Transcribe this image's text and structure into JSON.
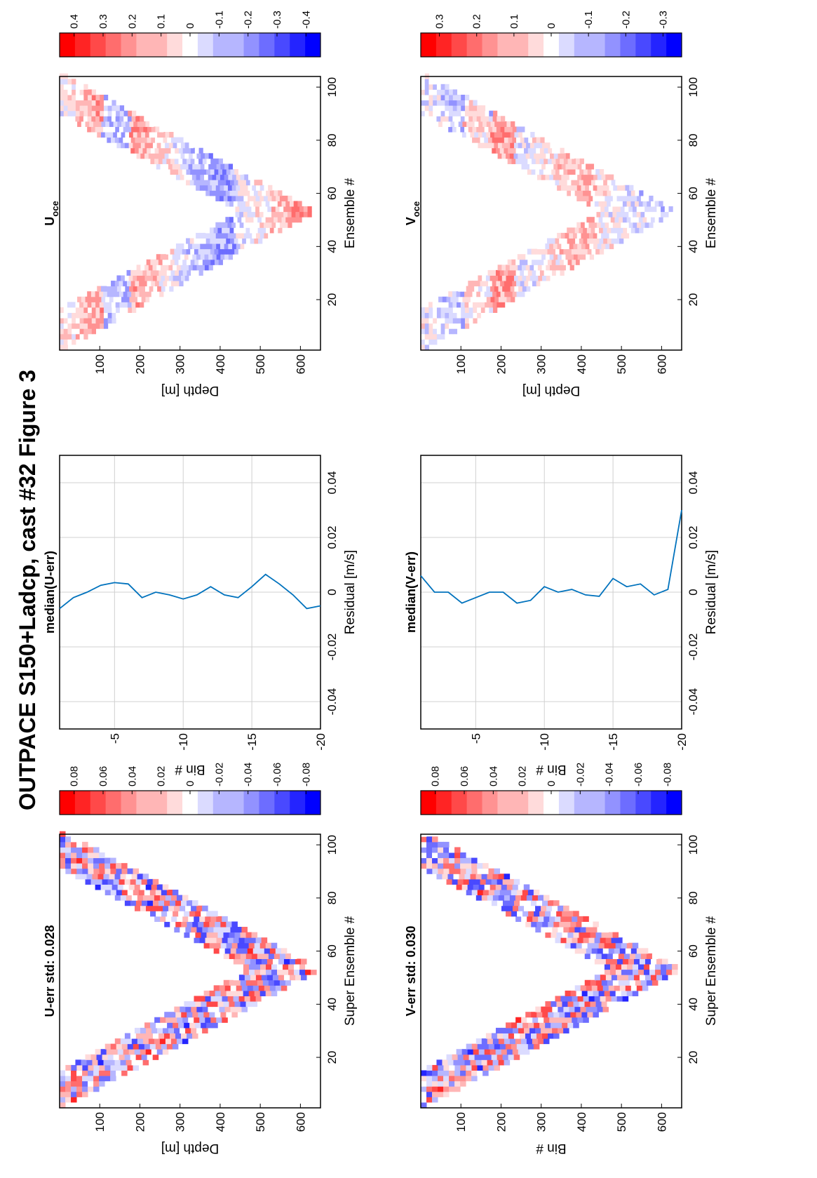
{
  "figure": {
    "title": "OUTPACE S150+Ladcp, cast #32  Figure 3"
  },
  "colors": {
    "red": "#ff0000",
    "blue": "#0000ff",
    "line": "#0072bd",
    "grid": "#d0d0d0"
  },
  "chart_data": [
    {
      "id": "u_err",
      "type": "heatmap",
      "title": "U-err std: 0.028",
      "xlabel": "Super Ensemble #",
      "ylabel": "Depth [m]",
      "xticks": [
        "20",
        "40",
        "60",
        "80",
        "100"
      ],
      "yticks": [
        "100",
        "200",
        "300",
        "400",
        "500",
        "600"
      ],
      "xlim": [
        1,
        104
      ],
      "ylim": [
        0,
        650
      ],
      "colorbar": {
        "range": [
          -0.09,
          0.09
        ],
        "ticks": [
          "0.08",
          "0.06",
          "0.04",
          "0.02",
          "0",
          "-0.02",
          "-0.04",
          "-0.06",
          "-0.08"
        ]
      }
    },
    {
      "id": "median_u",
      "type": "line",
      "title": "median(U-err)",
      "xlabel": "Residual [m/s]",
      "ylabel": "Bin #",
      "xticks": [
        "-0.04",
        "-0.02",
        "0",
        "0.02",
        "0.04"
      ],
      "yticks": [
        "-5",
        "-10",
        "-15",
        "-20"
      ],
      "xlim": [
        -0.05,
        0.05
      ],
      "ylim": [
        -20,
        -1
      ],
      "grid": true,
      "series": [
        {
          "bins": [
            -1,
            -2,
            -3,
            -4,
            -5,
            -6,
            -7,
            -8,
            -9,
            -10,
            -11,
            -12,
            -13,
            -14,
            -15,
            -16,
            -17,
            -18,
            -19,
            -20
          ],
          "values": [
            -0.006,
            -0.002,
            0.0,
            0.0025,
            0.0035,
            0.003,
            -0.002,
            0.0,
            -0.001,
            -0.0025,
            -0.001,
            0.002,
            -0.001,
            -0.002,
            0.002,
            0.0065,
            0.003,
            -0.001,
            -0.006,
            -0.005
          ]
        }
      ]
    },
    {
      "id": "u_oce",
      "type": "heatmap",
      "title": "U",
      "title_sub": "oce",
      "xlabel": "Ensemble #",
      "ylabel": "Depth [m]",
      "xticks": [
        "20",
        "40",
        "60",
        "80",
        "100"
      ],
      "yticks": [
        "100",
        "200",
        "300",
        "400",
        "500",
        "600"
      ],
      "xlim": [
        1,
        104
      ],
      "ylim": [
        0,
        650
      ],
      "colorbar": {
        "range": [
          -0.45,
          0.45
        ],
        "ticks": [
          "0.4",
          "0.3",
          "0.2",
          "0.1",
          "0",
          "-0.1",
          "-0.2",
          "-0.3",
          "-0.4"
        ]
      }
    },
    {
      "id": "v_err",
      "type": "heatmap",
      "title": "V-err std: 0.030",
      "xlabel": "Super Ensemble #",
      "ylabel": "Bin #",
      "xticks": [
        "20",
        "40",
        "60",
        "80",
        "100"
      ],
      "yticks": [
        "100",
        "200",
        "300",
        "400",
        "500",
        "600"
      ],
      "xlim": [
        1,
        104
      ],
      "ylim": [
        0,
        650
      ],
      "colorbar": {
        "range": [
          -0.09,
          0.09
        ],
        "ticks": [
          "0.08",
          "0.06",
          "0.04",
          "0.02",
          "0",
          "-0.02",
          "-0.04",
          "-0.06",
          "-0.08"
        ]
      }
    },
    {
      "id": "median_v",
      "type": "line",
      "title": "median(V-err)",
      "xlabel": "Residual [m/s]",
      "ylabel": "Bin #",
      "xticks": [
        "-0.04",
        "-0.02",
        "0",
        "0.02",
        "0.04"
      ],
      "yticks": [
        "-5",
        "-10",
        "-15",
        "-20"
      ],
      "xlim": [
        -0.05,
        0.05
      ],
      "ylim": [
        -20,
        -1
      ],
      "grid": true,
      "series": [
        {
          "bins": [
            -1,
            -2,
            -3,
            -4,
            -5,
            -6,
            -7,
            -8,
            -9,
            -10,
            -11,
            -12,
            -13,
            -14,
            -15,
            -16,
            -17,
            -18,
            -19,
            -20
          ],
          "values": [
            0.006,
            0.0,
            0.0,
            -0.004,
            -0.002,
            0.0,
            0.0,
            -0.004,
            -0.003,
            0.002,
            0.0,
            0.001,
            -0.001,
            -0.0015,
            0.005,
            0.002,
            0.003,
            -0.001,
            0.001,
            0.03
          ]
        }
      ]
    },
    {
      "id": "v_oce",
      "type": "heatmap",
      "title": "V",
      "title_sub": "oce",
      "xlabel": "Ensemble #",
      "ylabel": "Depth [m]",
      "xticks": [
        "20",
        "40",
        "60",
        "80",
        "100"
      ],
      "yticks": [
        "100",
        "200",
        "300",
        "400",
        "500",
        "600"
      ],
      "xlim": [
        1,
        104
      ],
      "ylim": [
        0,
        650
      ],
      "colorbar": {
        "range": [
          -0.35,
          0.35
        ],
        "ticks": [
          "0.3",
          "0.2",
          "0.1",
          "0",
          "-0.1",
          "-0.2",
          "-0.3"
        ]
      }
    }
  ]
}
